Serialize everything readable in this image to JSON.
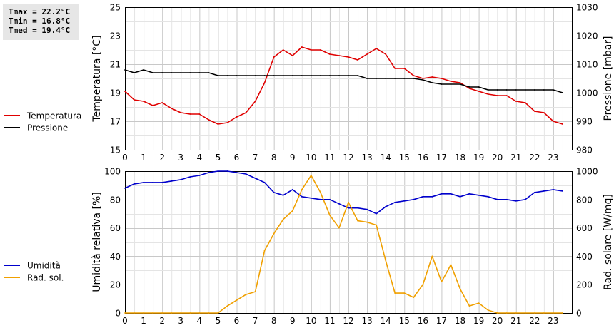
{
  "stats": {
    "tmax": "Tmax = 22.2°C",
    "tmin": "Tmin = 16.8°C",
    "tmed": "Tmed = 19.4°C"
  },
  "chart_data": [
    {
      "type": "line",
      "x_ticks": [
        "0",
        "1",
        "2",
        "3",
        "4",
        "5",
        "6",
        "7",
        "8",
        "9",
        "10",
        "11",
        "12",
        "13",
        "14",
        "15",
        "16",
        "17",
        "18",
        "19",
        "20",
        "21",
        "22",
        "23"
      ],
      "xlim": [
        0,
        24
      ],
      "ylabel": "Temperatura [°C]",
      "ylabel_right": "Pressione [mbar]",
      "ylim": [
        15,
        25
      ],
      "y_ticks": [
        15,
        17,
        19,
        21,
        23,
        25
      ],
      "ylim_right": [
        980,
        1030
      ],
      "y_ticks_right": [
        980,
        990,
        1000,
        1010,
        1020,
        1030
      ],
      "grid": true,
      "legend_position": "left",
      "series": [
        {
          "name": "Temperatura",
          "axis": "left",
          "color": "#e00000",
          "x": [
            0,
            0.5,
            1,
            1.5,
            2,
            2.5,
            3,
            3.5,
            4,
            4.5,
            5,
            5.5,
            6,
            6.5,
            7,
            7.5,
            8,
            8.5,
            9,
            9.5,
            10,
            10.5,
            11,
            11.5,
            12,
            12.5,
            13,
            13.5,
            14,
            14.5,
            15,
            15.5,
            16,
            16.5,
            17,
            17.5,
            18,
            18.5,
            19,
            19.5,
            20,
            20.5,
            21,
            21.5,
            22,
            22.5,
            23,
            23.5
          ],
          "values": [
            19.1,
            18.5,
            18.4,
            18.1,
            18.3,
            17.9,
            17.6,
            17.5,
            17.5,
            17.1,
            16.8,
            16.9,
            17.3,
            17.6,
            18.4,
            19.7,
            21.5,
            22.0,
            21.6,
            22.2,
            22.0,
            22.0,
            21.7,
            21.6,
            21.5,
            21.3,
            21.7,
            22.1,
            21.7,
            20.7,
            20.7,
            20.2,
            20.0,
            20.1,
            20.0,
            19.8,
            19.7,
            19.3,
            19.1,
            18.9,
            18.8,
            18.8,
            18.4,
            18.3,
            17.7,
            17.6,
            17.0,
            16.8
          ]
        },
        {
          "name": "Pressione",
          "axis": "right",
          "color": "#000000",
          "x": [
            0,
            0.5,
            1,
            1.5,
            2,
            2.5,
            3,
            3.5,
            4,
            4.5,
            5,
            5.5,
            6,
            6.5,
            7,
            7.5,
            8,
            8.5,
            9,
            9.5,
            10,
            10.5,
            11,
            11.5,
            12,
            12.5,
            13,
            13.5,
            14,
            14.5,
            15,
            15.5,
            16,
            16.5,
            17,
            17.5,
            18,
            18.5,
            19,
            19.5,
            20,
            20.5,
            21,
            21.5,
            22,
            22.5,
            23,
            23.5
          ],
          "values": [
            1008,
            1007,
            1008,
            1007,
            1007,
            1007,
            1007,
            1007,
            1007,
            1007,
            1006,
            1006,
            1006,
            1006,
            1006,
            1006,
            1006,
            1006,
            1006,
            1006,
            1006,
            1006,
            1006,
            1006,
            1006,
            1006,
            1005,
            1005,
            1005,
            1005,
            1005,
            1005,
            1004.5,
            1003.5,
            1003,
            1003,
            1003,
            1002,
            1002,
            1001,
            1001,
            1001,
            1001,
            1001,
            1001,
            1001,
            1001,
            1000
          ]
        }
      ]
    },
    {
      "type": "line",
      "x_ticks": [
        "0",
        "1",
        "2",
        "3",
        "4",
        "5",
        "6",
        "7",
        "8",
        "9",
        "10",
        "11",
        "12",
        "13",
        "14",
        "15",
        "16",
        "17",
        "18",
        "19",
        "20",
        "21",
        "22",
        "23"
      ],
      "xlim": [
        0,
        24
      ],
      "ylabel": "Umidità relativa [%]",
      "ylabel_right": "Rad. solare [W/mq]",
      "ylim": [
        0,
        100
      ],
      "y_ticks": [
        0,
        20,
        40,
        60,
        80,
        100
      ],
      "ylim_right": [
        0,
        1000
      ],
      "y_ticks_right": [
        0,
        200,
        400,
        600,
        800,
        1000
      ],
      "grid": true,
      "legend_position": "left",
      "series": [
        {
          "name": "Umidità",
          "axis": "left",
          "color": "#0000cc",
          "x": [
            0,
            0.5,
            1,
            1.5,
            2,
            2.5,
            3,
            3.5,
            4,
            4.5,
            5,
            5.5,
            6,
            6.5,
            7,
            7.5,
            8,
            8.5,
            9,
            9.5,
            10,
            10.5,
            11,
            11.5,
            12,
            12.5,
            13,
            13.5,
            14,
            14.5,
            15,
            15.5,
            16,
            16.5,
            17,
            17.5,
            18,
            18.5,
            19,
            19.5,
            20,
            20.5,
            21,
            21.5,
            22,
            22.5,
            23,
            23.5
          ],
          "values": [
            88,
            91,
            92,
            92,
            92,
            93,
            94,
            96,
            97,
            99,
            100,
            100,
            99,
            98,
            95,
            92,
            85,
            83,
            87,
            82,
            81,
            80,
            80,
            77,
            74,
            74,
            73,
            70,
            75,
            78,
            79,
            80,
            82,
            82,
            84,
            84,
            82,
            84,
            83,
            82,
            80,
            80,
            79,
            80,
            85,
            86,
            87,
            86
          ]
        },
        {
          "name": "Rad. sol.",
          "axis": "right",
          "color": "#f0a000",
          "x": [
            0,
            0.5,
            1,
            1.5,
            2,
            2.5,
            3,
            3.5,
            4,
            4.5,
            5,
            5.5,
            6,
            6.5,
            7,
            7.5,
            8,
            8.5,
            9,
            9.5,
            10,
            10.5,
            11,
            11.5,
            12,
            12.5,
            13,
            13.5,
            14,
            14.5,
            15,
            15.5,
            16,
            16.5,
            17,
            17.5,
            18,
            18.5,
            19,
            19.5,
            20,
            20.5,
            21,
            21.5,
            22,
            22.5,
            23,
            23.5
          ],
          "values": [
            0,
            0,
            0,
            0,
            0,
            0,
            0,
            0,
            0,
            0,
            0,
            50,
            90,
            130,
            150,
            440,
            560,
            660,
            720,
            870,
            970,
            850,
            690,
            600,
            780,
            650,
            640,
            620,
            370,
            140,
            140,
            110,
            200,
            400,
            220,
            340,
            170,
            50,
            70,
            20,
            0,
            0,
            0,
            0,
            0,
            0,
            0,
            0
          ]
        }
      ]
    }
  ]
}
